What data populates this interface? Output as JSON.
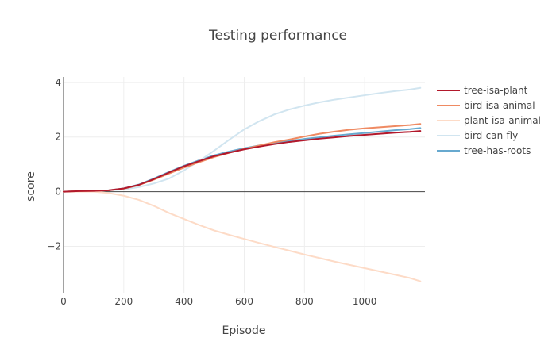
{
  "chart_data": {
    "type": "line",
    "title": "Testing performance",
    "xlabel": "Episode",
    "ylabel": "score",
    "xlim": [
      0,
      1200
    ],
    "ylim": [
      -3.7,
      4.2
    ],
    "x_ticks": [
      0,
      200,
      400,
      600,
      800,
      1000
    ],
    "y_ticks": [
      -2,
      0,
      2,
      4
    ],
    "x_tick_labels": [
      "0",
      "200",
      "400",
      "600",
      "800",
      "1000"
    ],
    "y_tick_labels": [
      "−2",
      "0",
      "2",
      "4"
    ],
    "grid": true,
    "zero_line": true,
    "legend_position": "right",
    "x": [
      0,
      50,
      100,
      150,
      200,
      250,
      300,
      350,
      400,
      450,
      500,
      550,
      600,
      650,
      700,
      750,
      800,
      850,
      900,
      950,
      1000,
      1050,
      1100,
      1150,
      1200
    ],
    "series": [
      {
        "name": "tree-isa-plant",
        "color": "#b2182b",
        "values": [
          0.0,
          0.02,
          0.03,
          0.05,
          0.12,
          0.25,
          0.46,
          0.7,
          0.93,
          1.12,
          1.3,
          1.43,
          1.55,
          1.65,
          1.74,
          1.82,
          1.88,
          1.94,
          1.99,
          2.04,
          2.08,
          2.12,
          2.16,
          2.19,
          2.22
        ]
      },
      {
        "name": "bird-isa-animal",
        "color": "#ef8a62",
        "values": [
          0.0,
          0.02,
          0.03,
          0.05,
          0.11,
          0.24,
          0.44,
          0.66,
          0.88,
          1.08,
          1.27,
          1.42,
          1.56,
          1.69,
          1.81,
          1.91,
          2.02,
          2.12,
          2.2,
          2.27,
          2.32,
          2.36,
          2.4,
          2.44,
          2.48
        ]
      },
      {
        "name": "plant-isa-animal",
        "color": "#fddbc7",
        "values": [
          0.0,
          0.0,
          0.0,
          -0.05,
          -0.15,
          -0.3,
          -0.52,
          -0.78,
          -1.0,
          -1.22,
          -1.42,
          -1.58,
          -1.73,
          -1.88,
          -2.02,
          -2.16,
          -2.3,
          -2.43,
          -2.56,
          -2.68,
          -2.8,
          -2.92,
          -3.04,
          -3.16,
          -3.28
        ]
      },
      {
        "name": "bird-can-fly",
        "color": "#d1e5f0",
        "values": [
          0.0,
          0.02,
          0.03,
          0.05,
          0.08,
          0.17,
          0.3,
          0.48,
          0.78,
          1.12,
          1.5,
          1.9,
          2.28,
          2.58,
          2.83,
          3.01,
          3.15,
          3.27,
          3.37,
          3.45,
          3.53,
          3.61,
          3.68,
          3.74,
          3.8
        ]
      },
      {
        "name": "tree-has-roots",
        "color": "#67a9cf",
        "values": [
          0.0,
          0.02,
          0.03,
          0.05,
          0.12,
          0.26,
          0.48,
          0.72,
          0.95,
          1.15,
          1.33,
          1.47,
          1.59,
          1.69,
          1.78,
          1.86,
          1.93,
          1.99,
          2.05,
          2.1,
          2.15,
          2.2,
          2.25,
          2.29,
          2.33
        ]
      }
    ]
  }
}
